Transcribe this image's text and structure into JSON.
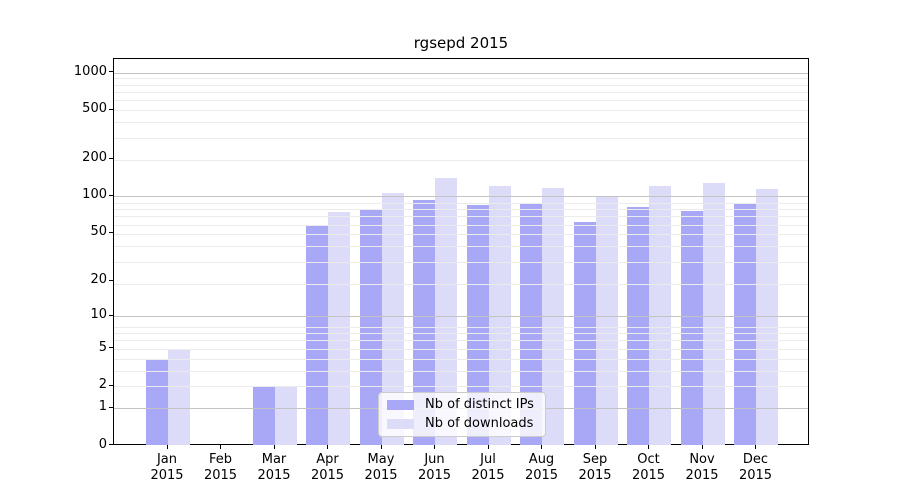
{
  "figure": {
    "title": "rgsepd 2015"
  },
  "x_axis": {
    "months": [
      "Jan",
      "Feb",
      "Mar",
      "Apr",
      "May",
      "Jun",
      "Jul",
      "Aug",
      "Sep",
      "Oct",
      "Nov",
      "Dec"
    ],
    "year": "2015"
  },
  "y_axis": {
    "tick_labels": [
      "0",
      "1",
      "2",
      "5",
      "10",
      "20",
      "50",
      "100",
      "200",
      "500",
      "1000"
    ]
  },
  "legend": {
    "items": [
      {
        "label": "Nb of distinct IPs",
        "swatch": "bar-ips-swatch"
      },
      {
        "label": "Nb of downloads",
        "swatch": "bar-downloads-swatch"
      }
    ]
  },
  "colors": {
    "bar_ips": "#a8a8f6",
    "bar_downloads": "#dcdcf8",
    "grid_major": "#c3c3c3",
    "grid_minor": "#ebebeb",
    "axis": "#000000",
    "legend_border": "#cccccc",
    "text": "#000000"
  },
  "chart_data": {
    "type": "bar",
    "title": "rgsepd 2015",
    "categories": [
      "Jan 2015",
      "Feb 2015",
      "Mar 2015",
      "Apr 2015",
      "May 2015",
      "Jun 2015",
      "Jul 2015",
      "Aug 2015",
      "Sep 2015",
      "Oct 2015",
      "Nov 2015",
      "Dec 2015"
    ],
    "series": [
      {
        "name": "Nb of distinct IPs",
        "values": [
          4,
          0,
          2,
          57,
          77,
          93,
          85,
          88,
          62,
          82,
          76,
          87
        ]
      },
      {
        "name": "Nb of downloads",
        "values": [
          5,
          0,
          2,
          75,
          107,
          140,
          122,
          118,
          101,
          121,
          128,
          114
        ]
      }
    ],
    "yscale": "log10(1+v)",
    "yticks": [
      0,
      1,
      2,
      5,
      10,
      20,
      50,
      100,
      200,
      500,
      1000
    ],
    "major_grid_values": [
      1,
      10,
      100,
      1000
    ],
    "ylim": [
      0,
      1290
    ],
    "grid": true,
    "legend_position": "lower center",
    "xlabel": "",
    "ylabel": ""
  }
}
